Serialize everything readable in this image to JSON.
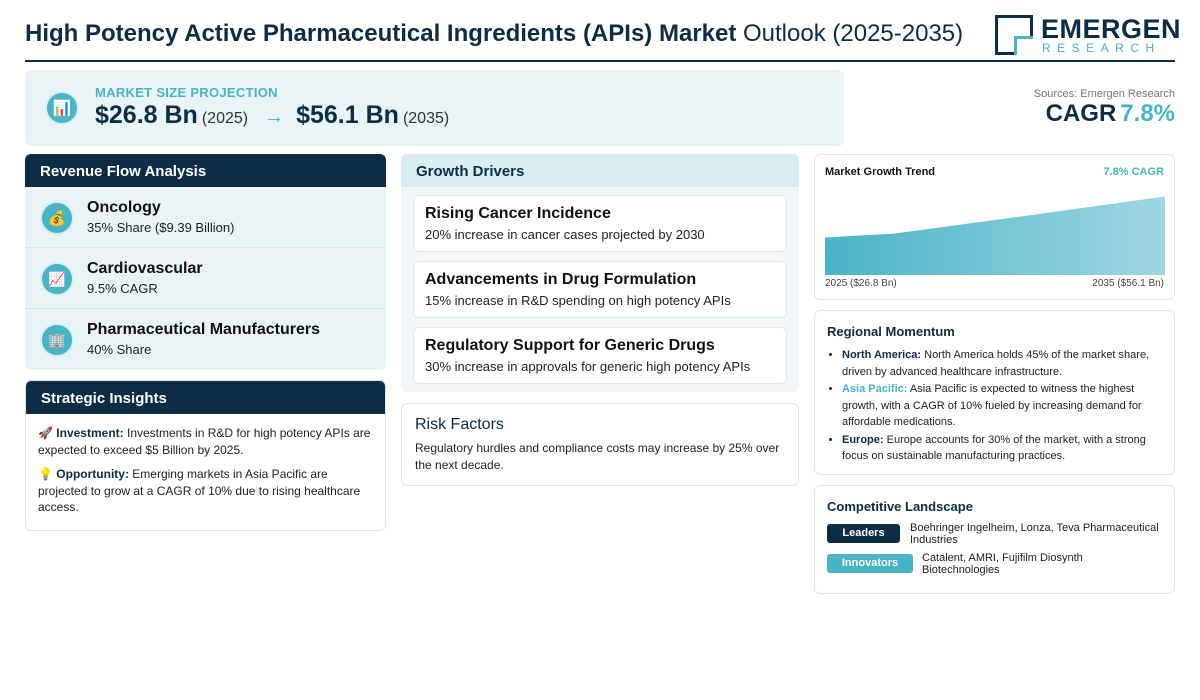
{
  "header": {
    "title_bold": "High Potency Active Pharmaceutical Ingredients (APIs) Market",
    "title_rest": "Outlook (2025-2035)",
    "logo_main": "EMERGEN",
    "logo_sub": "RESEARCH"
  },
  "market_size": {
    "icon": "bar-chart-icon",
    "label": "MARKET SIZE PROJECTION",
    "value_start": "$26.8 Bn",
    "year_start": "(2025)",
    "arrow": "→",
    "value_end": "$56.1 Bn",
    "year_end": "(2035)"
  },
  "sources": "Sources: Emergen Research",
  "cagr": {
    "label": "CAGR",
    "value": "7.8%"
  },
  "revenue_flow": {
    "title": "Revenue Flow Analysis",
    "items": [
      {
        "icon": "money-bag-icon",
        "glyph": "💰",
        "title": "Oncology",
        "sub": "35% Share ($9.39 Billion)"
      },
      {
        "icon": "trend-chart-icon",
        "glyph": "📈",
        "title": "Cardiovascular",
        "sub": "9.5% CAGR"
      },
      {
        "icon": "building-icon",
        "glyph": "🏢",
        "title": "Pharmaceutical Manufacturers",
        "sub": "40% Share"
      }
    ]
  },
  "strategic_insights": {
    "title": "Strategic Insights",
    "investment_label": "Investment:",
    "investment_text": "Investments in R&D for high potency APIs are expected to exceed $5 Billion by 2025.",
    "opportunity_label": "Opportunity:",
    "opportunity_text": "Emerging markets in Asia Pacific are projected to grow at a CAGR of 10% due to rising healthcare access."
  },
  "growth_drivers": {
    "title": "Growth Drivers",
    "items": [
      {
        "title": "Rising Cancer Incidence",
        "sub": "20% increase in cancer cases projected by 2030"
      },
      {
        "title": "Advancements in Drug Formulation",
        "sub": "15% increase in R&D spending on high potency APIs"
      },
      {
        "title": "Regulatory Support for Generic Drugs",
        "sub": "30% increase in approvals for generic high potency APIs"
      }
    ]
  },
  "risk_factors": {
    "title": "Risk Factors",
    "text": "Regulatory hurdles and compliance costs may increase by 25% over the next decade."
  },
  "market_trend": {
    "title": "Market Growth Trend",
    "cagr_label": "7.8% CAGR",
    "start_label": "2025 ($26.8 Bn)",
    "end_label": "2035 ($56.1 Bn)"
  },
  "chart_data": {
    "type": "area",
    "x": [
      2025,
      2027,
      2031,
      2035
    ],
    "values": [
      26.8,
      29.5,
      42.6,
      56.1
    ],
    "title": "Market Growth Trend",
    "xlabel": "",
    "ylabel": "",
    "ylim": [
      0,
      60
    ],
    "grid": false,
    "colors": [
      "#4ab3c6",
      "#9fd6e1"
    ]
  },
  "regional_momentum": {
    "title": "Regional Momentum",
    "items": [
      {
        "region": "North America:",
        "text": "North America holds 45% of the market share, driven by advanced healthcare infrastructure."
      },
      {
        "region": "Asia Pacific:",
        "text": "Asia Pacific is expected to witness the highest growth, with a CAGR of 10% fueled by increasing demand for affordable medications."
      },
      {
        "region": "Europe:",
        "text": "Europe accounts for 30% of the market, with a strong focus on sustainable manufacturing practices."
      }
    ]
  },
  "competitive_landscape": {
    "title": "Competitive Landscape",
    "leaders_label": "Leaders",
    "leaders_text": "Boehringer Ingelheim, Lonza, Teva Pharmaceutical Industries",
    "innovators_label": "Innovators",
    "innovators_text": "Catalent, AMRI, Fujifilm Diosynth Biotechnologies"
  },
  "colors": {
    "navy": "#0d2d45",
    "teal": "#4ab3c6",
    "light_bg": "#e9f4f7"
  }
}
